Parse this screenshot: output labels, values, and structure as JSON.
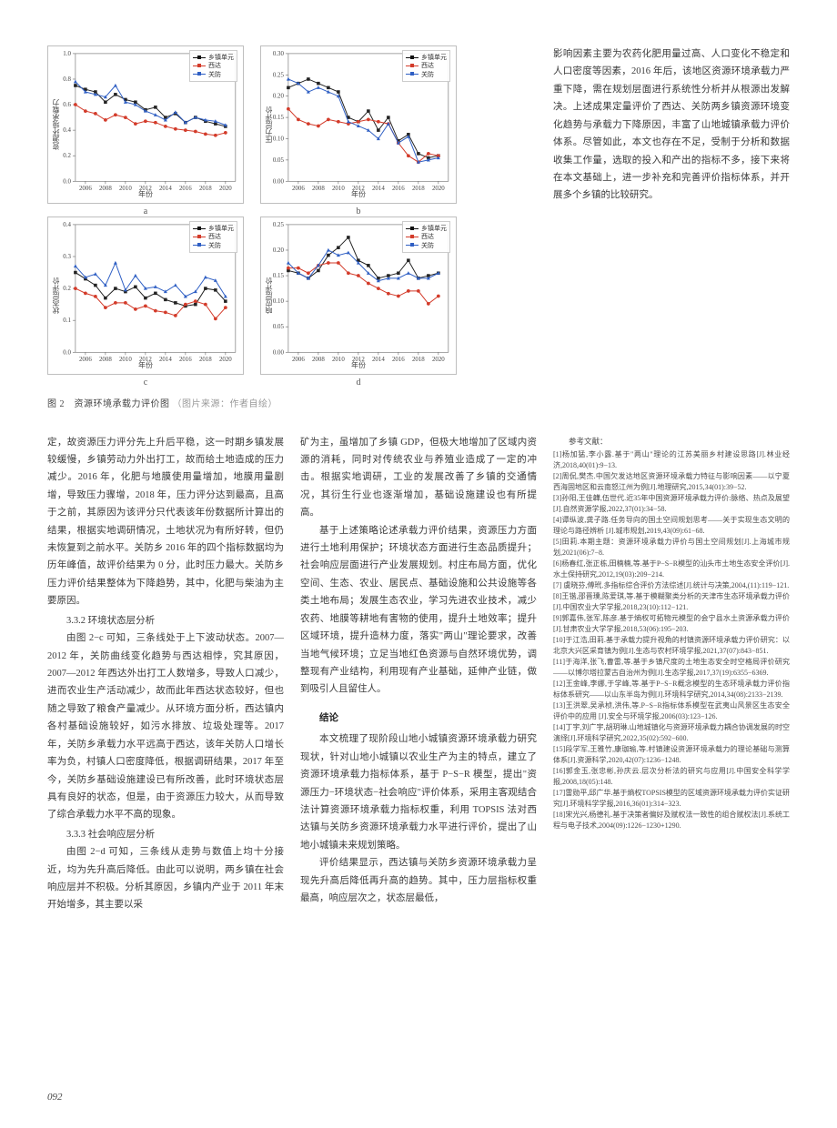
{
  "colors": {
    "red": "#d33b2a",
    "blue": "#2f5fc4",
    "black": "#222222",
    "grid": "#e6e6e6",
    "axis": "#666666",
    "text": "#3a3a3a",
    "light_text": "#999999",
    "bg": "#ffffff"
  },
  "legend": {
    "a": "乡镇单元",
    "b": "西达",
    "c": "关防"
  },
  "charts": {
    "a": {
      "label": "a",
      "ylabel": "资源环境承载力",
      "xlabel": "年份",
      "xlim": [
        2005,
        2021
      ],
      "ylim": [
        0.0,
        1.0
      ],
      "ytick_step": 0.2,
      "xticks": [
        2006,
        2008,
        2010,
        2012,
        2014,
        2016,
        2018,
        2020
      ],
      "series": {
        "black": {
          "x": [
            2005,
            2006,
            2007,
            2008,
            2009,
            2010,
            2011,
            2012,
            2013,
            2014,
            2015,
            2016,
            2017,
            2018,
            2019,
            2020
          ],
          "y": [
            0.75,
            0.72,
            0.7,
            0.62,
            0.68,
            0.64,
            0.62,
            0.56,
            0.58,
            0.5,
            0.53,
            0.46,
            0.5,
            0.47,
            0.45,
            0.43
          ]
        },
        "red": {
          "x": [
            2005,
            2006,
            2007,
            2008,
            2009,
            2010,
            2011,
            2012,
            2013,
            2014,
            2015,
            2016,
            2017,
            2018,
            2019,
            2020
          ],
          "y": [
            0.6,
            0.55,
            0.53,
            0.48,
            0.52,
            0.5,
            0.45,
            0.47,
            0.46,
            0.43,
            0.41,
            0.4,
            0.39,
            0.37,
            0.36,
            0.38
          ]
        },
        "blue": {
          "x": [
            2005,
            2006,
            2007,
            2008,
            2009,
            2010,
            2011,
            2012,
            2013,
            2014,
            2015,
            2016,
            2017,
            2018,
            2019,
            2020
          ],
          "y": [
            0.78,
            0.7,
            0.68,
            0.66,
            0.75,
            0.62,
            0.6,
            0.55,
            0.52,
            0.48,
            0.54,
            0.46,
            0.5,
            0.48,
            0.47,
            0.44
          ]
        }
      }
    },
    "b": {
      "label": "b",
      "ylabel": "压力层评价",
      "xlabel": "年份",
      "xlim": [
        2005,
        2021
      ],
      "ylim": [
        0.0,
        0.3
      ],
      "ytick_step": 0.05,
      "xticks": [
        2006,
        2008,
        2010,
        2012,
        2014,
        2016,
        2018,
        2020
      ],
      "series": {
        "black": {
          "x": [
            2005,
            2006,
            2007,
            2008,
            2009,
            2010,
            2011,
            2012,
            2013,
            2014,
            2015,
            2016,
            2017,
            2018,
            2019,
            2020
          ],
          "y": [
            0.22,
            0.23,
            0.24,
            0.23,
            0.22,
            0.21,
            0.15,
            0.14,
            0.165,
            0.12,
            0.15,
            0.095,
            0.11,
            0.065,
            0.055,
            0.06
          ]
        },
        "red": {
          "x": [
            2005,
            2006,
            2007,
            2008,
            2009,
            2010,
            2011,
            2012,
            2013,
            2014,
            2015,
            2016,
            2017,
            2018,
            2019,
            2020
          ],
          "y": [
            0.17,
            0.145,
            0.135,
            0.13,
            0.145,
            0.14,
            0.135,
            0.14,
            0.145,
            0.14,
            0.135,
            0.09,
            0.06,
            0.045,
            0.065,
            0.06
          ]
        },
        "blue": {
          "x": [
            2005,
            2006,
            2007,
            2008,
            2009,
            2010,
            2011,
            2012,
            2013,
            2014,
            2015,
            2016,
            2017,
            2018,
            2019,
            2020
          ],
          "y": [
            0.24,
            0.23,
            0.21,
            0.22,
            0.21,
            0.2,
            0.14,
            0.13,
            0.12,
            0.1,
            0.135,
            0.09,
            0.105,
            0.045,
            0.05,
            0.055
          ]
        }
      }
    },
    "c": {
      "label": "c",
      "ylabel": "状态层评价",
      "xlabel": "年份",
      "xlim": [
        2005,
        2021
      ],
      "ylim": [
        0.0,
        0.4
      ],
      "ytick_step": 0.1,
      "xticks": [
        2006,
        2008,
        2010,
        2012,
        2014,
        2016,
        2018,
        2020
      ],
      "series": {
        "black": {
          "x": [
            2005,
            2006,
            2007,
            2008,
            2009,
            2010,
            2011,
            2012,
            2013,
            2014,
            2015,
            2016,
            2017,
            2018,
            2019,
            2020
          ],
          "y": [
            0.25,
            0.23,
            0.21,
            0.17,
            0.2,
            0.19,
            0.205,
            0.17,
            0.185,
            0.165,
            0.155,
            0.145,
            0.15,
            0.2,
            0.195,
            0.16
          ]
        },
        "red": {
          "x": [
            2005,
            2006,
            2007,
            2008,
            2009,
            2010,
            2011,
            2012,
            2013,
            2014,
            2015,
            2016,
            2017,
            2018,
            2019,
            2020
          ],
          "y": [
            0.2,
            0.185,
            0.175,
            0.14,
            0.155,
            0.155,
            0.135,
            0.145,
            0.13,
            0.125,
            0.115,
            0.15,
            0.16,
            0.15,
            0.105,
            0.14
          ]
        },
        "blue": {
          "x": [
            2005,
            2006,
            2007,
            2008,
            2009,
            2010,
            2011,
            2012,
            2013,
            2014,
            2015,
            2016,
            2017,
            2018,
            2019,
            2020
          ],
          "y": [
            0.27,
            0.235,
            0.245,
            0.21,
            0.28,
            0.195,
            0.24,
            0.2,
            0.205,
            0.19,
            0.21,
            0.175,
            0.19,
            0.235,
            0.225,
            0.175
          ]
        }
      }
    },
    "d": {
      "label": "d",
      "ylabel": "响应层评价",
      "xlabel": "年份",
      "xlim": [
        2005,
        2021
      ],
      "ylim": [
        0.0,
        0.25
      ],
      "ytick_step": 0.05,
      "xticks": [
        2006,
        2008,
        2010,
        2012,
        2014,
        2016,
        2018,
        2020
      ],
      "series": {
        "black": {
          "x": [
            2005,
            2006,
            2007,
            2008,
            2009,
            2010,
            2011,
            2012,
            2013,
            2014,
            2015,
            2016,
            2017,
            2018,
            2019,
            2020
          ],
          "y": [
            0.16,
            0.155,
            0.145,
            0.16,
            0.19,
            0.205,
            0.225,
            0.18,
            0.17,
            0.145,
            0.15,
            0.155,
            0.18,
            0.145,
            0.15,
            0.155
          ]
        },
        "red": {
          "x": [
            2005,
            2006,
            2007,
            2008,
            2009,
            2010,
            2011,
            2012,
            2013,
            2014,
            2015,
            2016,
            2017,
            2018,
            2019,
            2020
          ],
          "y": [
            0.165,
            0.165,
            0.155,
            0.17,
            0.175,
            0.175,
            0.155,
            0.15,
            0.135,
            0.125,
            0.115,
            0.11,
            0.12,
            0.12,
            0.095,
            0.11
          ]
        },
        "blue": {
          "x": [
            2005,
            2006,
            2007,
            2008,
            2009,
            2010,
            2011,
            2012,
            2013,
            2014,
            2015,
            2016,
            2017,
            2018,
            2019,
            2020
          ],
          "y": [
            0.175,
            0.155,
            0.145,
            0.17,
            0.2,
            0.19,
            0.195,
            0.175,
            0.155,
            0.14,
            0.145,
            0.145,
            0.155,
            0.145,
            0.145,
            0.155
          ]
        }
      }
    }
  },
  "fig_caption": {
    "main": "图 2　资源环境承载力评价图",
    "src": "（图片来源：作者自绘）"
  },
  "top_right_para": "影响因素主要为农药化肥用量过高、人口变化不稳定和人口密度等因素，2016 年后，该地区资源环境承载力严重下降，需在规划层面进行系统性分析并从根源出发解决。上述成果定量评价了西达、关防两乡镇资源环境变化趋势与承载力下降原因，丰富了山地城镇承载力评价体系。尽管如此，本文也存在不足，受制于分析和数据收集工作量，选取的投入和产出的指标不多，接下来将在本文基础上，进一步补充和完善评价指标体系，并开展多个乡镇的比较研究。",
  "col1": {
    "p1": "定，故资源压力评分先上升后平稳，这一时期乡镇发展较缓慢，乡镇劳动力外出打工，故而给土地造成的压力减少。2016 年，化肥与地膜使用量增加，地膜用量剧增，导致压力骤增，2018 年，压力评分达到最高，且高于之前，其原因为该评分只代表该年份数据所计算出的结果，根据实地调研情况，土地状况为有所好转，但仍未恢复到之前水平。关防乡 2016 年的四个指标数据均为历年峰值，故评价结果为 0 分，此时压力最大。关防乡压力评价结果整体为下降趋势，其中，化肥与柴油为主要原因。",
    "h1": "3.3.2 环境状态层分析",
    "p2": "由图 2−c 可知，三条线处于上下波动状态。2007—2012 年，关防曲线变化趋势与西达相悖，究其原因，2007—2012 年西达外出打工人数增多，导致人口减少，进而农业生产活动减少，故而此年西达状态较好，但也随之导致了粮食产量减少。从环境方面分析，西达镇内各村基础设施较好，如污水排放、垃圾处理等。2017 年，关防乡承载力水平远高于西达，该年关防人口增长率为负，村镇人口密度降低，根据调研结果，2017 年至今，关防乡基础设施建设已有所改善，此时环境状态层具有良好的状态，但是，由于资源压力较大，从而导致了综合承载力水平不高的现象。",
    "h2": "3.3.3 社会响应层分析",
    "p3": "由图 2−d 可知，三条线从走势与数值上均十分接近，均为先升高后降低。由此可以说明，两乡镇在社会响应层并不积极。分析其原因，乡镇内产业于 2011 年末开始增多，其主要以采"
  },
  "col2": {
    "p1": "矿为主，虽增加了乡镇 GDP，但极大地增加了区域内资源的消耗，同时对传统农业与养殖业造成了一定的冲击。根据实地调研，工业的发展改善了乡镇的交通情况，其衍生行业也逐渐增加，基础设施建设也有所提高。",
    "p2": "基于上述策略论述承载力评价结果，资源压力方面进行土地利用保护；环境状态方面进行生态品质提升；社会响应层面进行产业发展规划。村庄布局方面，优化空间、生态、农业、居民点、基础设施和公共设施等各类土地布局；发展生态农业，学习先进农业技术，减少农药、地膜等耕地有害物的使用，提升土地效率；提升区域环境，提升造林力度，落实\"两山\"理论要求，改善当地气候环境；立足当地红色资源与自然环境优势，调整现有产业结构，利用现有产业基础，延伸产业链，做到吸引人且留住人。",
    "h1": "结论",
    "p3": "本文梳理了现阶段山地小城镇资源环境承载力研究现状，针对山地小城镇以农业生产为主的特点，建立了资源环境承载力指标体系，基于 P−S−R 模型，提出\"资源压力−环境状态−社会响应\"评价体系，采用主客观结合法计算资源环境承载力指标权重，利用 TOPSIS 法对西达镇与关防乡资源环境承载力水平进行评价，提出了山地小城镇未来规划策略。",
    "p4": "评价结果显示，西达镇与关防乡资源环境承载力呈现先升高后降低再升高的趋势。其中，压力层指标权重最高，响应层次之，状态层最低，"
  },
  "refs": {
    "title": "参考文献：",
    "items": [
      "[1]杨加猛,李小露.基于\"两山\"理论的江苏美丽乡村建设思路[J].林业经济,2018,40(01):9−13.",
      "[2]周侃,樊杰.中国欠发达地区资源环境承载力特征与影响因素——以宁夏西海固地区和云南怒江州为例[J].地理研究,2015,34(01):39−52.",
      "[3]孙阳,王佳韡,伍世代.近35年中国资源环境承载力评价:脉络、热点及展望[J].自然资源学报,2022,37(01):34−58.",
      "[4]谭纵波,龚子路.任务导向的国土空间规划思考——关于实现生态文明的理论与路径辨析 [J].城市规划,2019,43(09):61−68.",
      "[5]田莉.本期主题：资源环境承载力评价与国土空间规划[J].上海城市规划,2021(06):7−8.",
      "[6]杨春红,张正栋,田楠楠,等.基于P−S−R模型的汕头市土地生态安全评价[J].水土保持研究,2012,19(03):209−214.",
      "[7] 虞晓芬,傅玳.多指标综合评价方法综述[J].统计与决策,2004,(11):119−121.",
      "[8]王锴,邵晋璞,陈爱琪,等.基于模糊聚类分析的天津市生态环境承载力评价[J].中国农业大学学报,2018,23(10):112−121.",
      "[9]郭嘉伟,张军,陈彦.基于熵权可拓物元模型的会宁县水土资源承载力评价[J].甘肃农业大学学报,2018,53(06):195−203.",
      "[10]于江浩,田莉.基于承载力提升视角的村镇资源环境承载力评价研究：以北京大兴区采育镇为例[J].生态与农村环境学报,2021,37(07):843−851.",
      "[11]于海洋,张飞,曹雷,等.基于乡镇尺度的土地生态安全时空格局评价研究——以博尔塔拉蒙古自治州为例[J].生态学报,2017,37(19):6355−6369.",
      "[12]王金峰,李娜,于学峰,等.基于P−S−R概念模型的生态环境承载力评价指标体系研究——以山东半岛为例[J].环境科学研究,2014,34(08):2133−2139.",
      "[13]王洪翠,吴承桢,洪伟,等.P−S−R指标体系模型在武夷山风景区生态安全评价中的应用 [J].安全与环境学报,2006(03):123−126.",
      "[14]丁宇,刘广宇,胡玥琳.山地城镇化与资源环境承载力耦合协调发展的时空演绎[J].环境科学研究,2022,35(02):592−600.",
      "[15]段学军,王雅竹,康珈瑜,等.村镇建设资源环境承载力的理论基础与测算体系[J].资源科学,2020,42(07):1236−1248.",
      "[16]郭金玉,张忠彬,孙庆云.层次分析法的研究与应用[J].中国安全科学学报,2008,18(05):148.",
      "[17]雷勋平,邱广华.基于熵权TOPSIS模型的区域资源环境承载力评价实证研究[J].环境科学学报,2016,36(01):314−323.",
      "[18]宋光兴,杨德礼.基于决策者偏好及赋权法一致性的组合赋权法[J].系统工程与电子技术,2004(09):1226−1230+1290."
    ]
  },
  "page_num": "092"
}
